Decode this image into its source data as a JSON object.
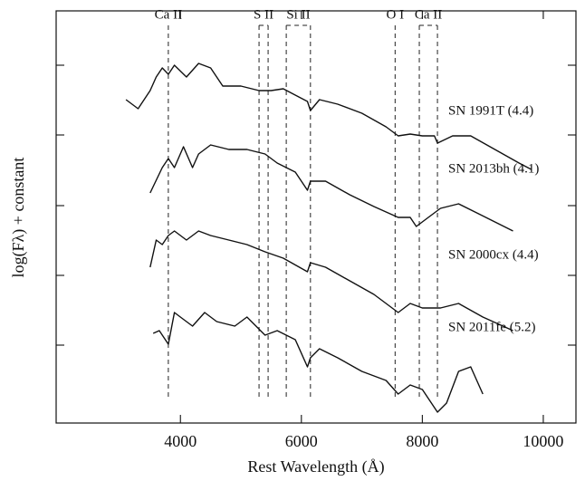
{
  "chart_data": {
    "type": "line",
    "xlabel": "Rest Wavelength (Å)",
    "ylabel": "log(Fλ) + constant",
    "xlim": [
      1945,
      10540
    ],
    "xticks": [
      4000,
      6000,
      8000,
      10000
    ],
    "ylim": [
      0,
      45.5
    ],
    "yticks": [
      8.6,
      16.3,
      24,
      31.8,
      39.5
    ],
    "color": "#111111",
    "series": [
      {
        "name": "SN 1991T (4.4)",
        "x": [
          3100,
          3300,
          3500,
          3600,
          3700,
          3800,
          3900,
          4100,
          4300,
          4500,
          4700,
          5000,
          5300,
          5500,
          5700,
          5900,
          6100,
          6150,
          6300,
          6600,
          7000,
          7400,
          7600,
          7800,
          8000,
          8200,
          8250,
          8500,
          8800,
          9200,
          9600,
          9800
        ],
        "values": [
          35.7,
          34.7,
          36.7,
          38.2,
          39.2,
          38.5,
          39.5,
          38.2,
          39.7,
          39.2,
          37.2,
          37.2,
          36.7,
          36.7,
          36.9,
          36.2,
          35.5,
          34.5,
          35.7,
          35.2,
          34.2,
          32.7,
          31.7,
          31.9,
          31.7,
          31.7,
          30.9,
          31.7,
          31.7,
          30.2,
          28.7,
          28.0
        ]
      },
      {
        "name": "SN 2013bh (4.1)",
        "x": [
          3500,
          3700,
          3800,
          3900,
          4050,
          4200,
          4300,
          4500,
          4800,
          5100,
          5400,
          5600,
          5900,
          6100,
          6150,
          6400,
          6800,
          7200,
          7600,
          7800,
          7900,
          8100,
          8300,
          8600,
          8900,
          9200,
          9500
        ],
        "values": [
          25.4,
          28.2,
          29.2,
          28.2,
          30.5,
          28.2,
          29.7,
          30.7,
          30.2,
          30.2,
          29.7,
          28.7,
          27.7,
          25.7,
          26.7,
          26.7,
          25.2,
          23.9,
          22.7,
          22.7,
          21.7,
          22.7,
          23.7,
          24.2,
          23.2,
          22.2,
          21.2
        ]
      },
      {
        "name": "SN 2000cx (4.4)",
        "x": [
          3500,
          3600,
          3700,
          3800,
          3900,
          4100,
          4300,
          4500,
          4800,
          5100,
          5400,
          5700,
          6100,
          6150,
          6400,
          6800,
          7200,
          7600,
          7800,
          8000,
          8300,
          8600,
          9000,
          9500
        ],
        "values": [
          17.2,
          20.2,
          19.7,
          20.7,
          21.2,
          20.2,
          21.2,
          20.7,
          20.2,
          19.7,
          18.9,
          18.2,
          16.7,
          17.7,
          17.2,
          15.7,
          14.2,
          12.2,
          13.2,
          12.7,
          12.7,
          13.2,
          11.7,
          10.2
        ]
      },
      {
        "name": "SN 2011fe (5.2)",
        "x": [
          3550,
          3650,
          3800,
          3900,
          4000,
          4200,
          4400,
          4600,
          4900,
          5100,
          5400,
          5600,
          5900,
          6100,
          6150,
          6300,
          6600,
          7000,
          7400,
          7600,
          7800,
          8000,
          8250,
          8400,
          8600,
          8800,
          9000
        ],
        "values": [
          9.9,
          10.2,
          8.7,
          12.2,
          11.7,
          10.7,
          12.2,
          11.2,
          10.7,
          11.7,
          9.7,
          10.2,
          9.2,
          6.2,
          7.2,
          8.2,
          7.2,
          5.7,
          4.7,
          3.2,
          4.2,
          3.7,
          1.2,
          2.2,
          5.7,
          6.2,
          3.2
        ]
      }
    ],
    "annotations": [
      {
        "label": "Ca II",
        "x": [
          3800
        ]
      },
      {
        "label": "S II",
        "x": [
          5300,
          5450
        ]
      },
      {
        "label": "Si II",
        "x": [
          5750,
          6150
        ]
      },
      {
        "label": "O I",
        "x": [
          7550
        ]
      },
      {
        "label": "Ca II",
        "x": [
          7950,
          8250
        ]
      }
    ]
  }
}
